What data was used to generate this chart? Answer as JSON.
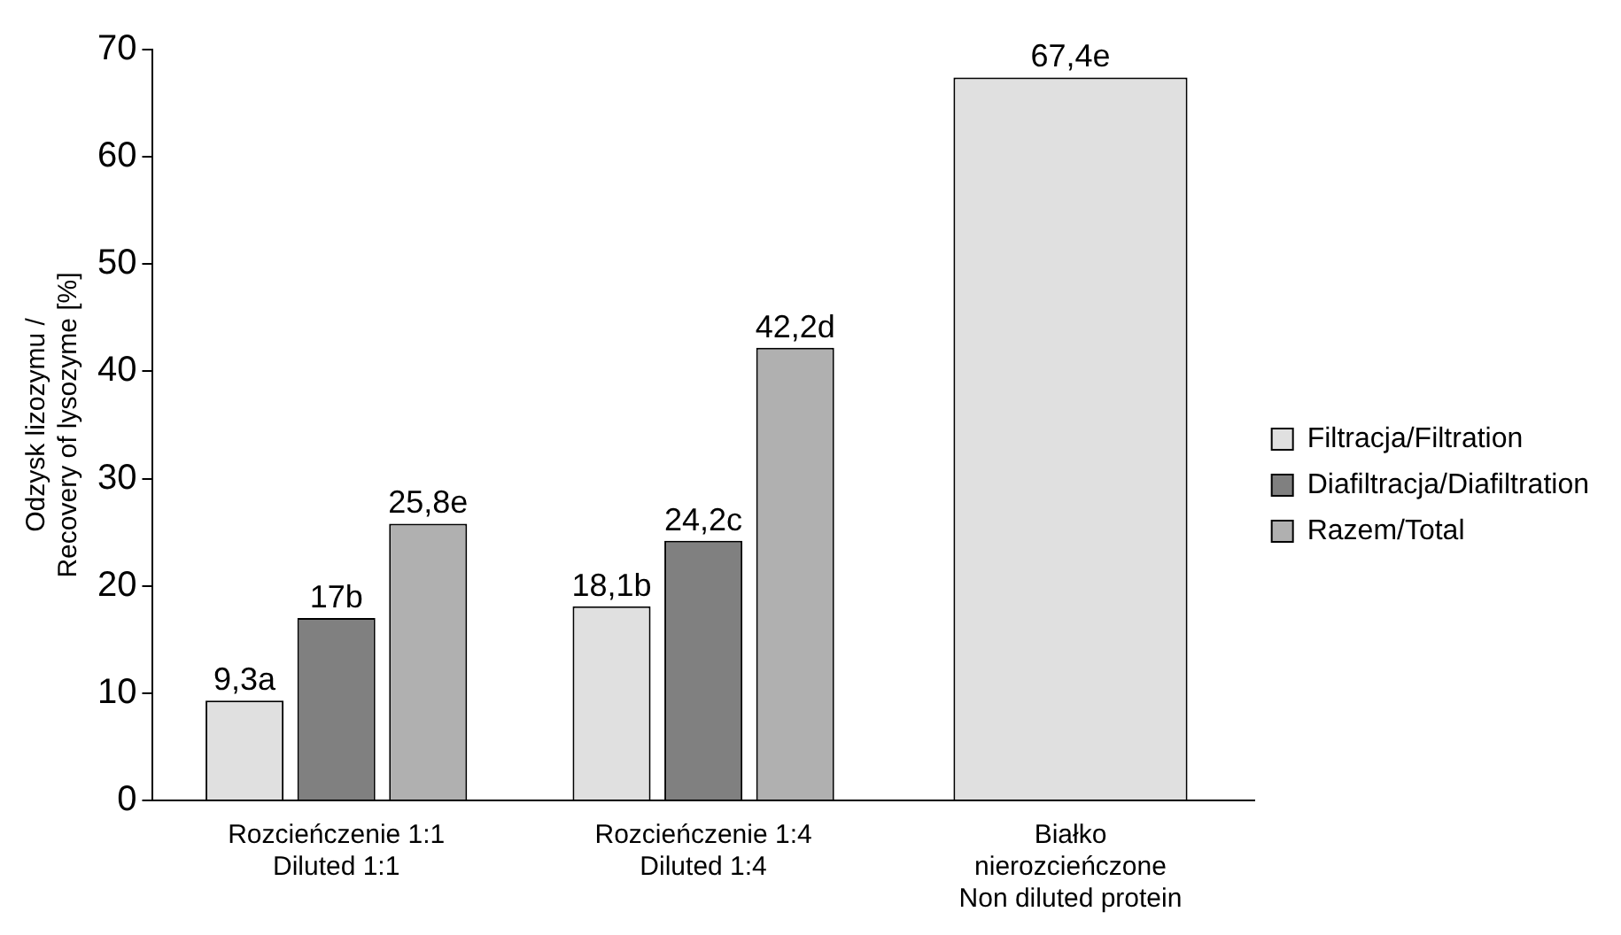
{
  "chart_data": {
    "type": "bar",
    "categories": [
      "Rozcieńczenie 1:1\nDiluted 1:1",
      "Rozcieńczenie 1:4\nDiluted 1:4",
      "Białko\nnierozcieńczone\nNon diluted protein"
    ],
    "series": [
      {
        "name": "Filtracja/Filtration",
        "color": "#e0e0e0",
        "values": [
          9.3,
          18.1,
          67.4
        ],
        "value_labels": [
          "9,3a",
          "18,1b",
          "67,4e"
        ]
      },
      {
        "name": "Diafiltracja/Diafiltration",
        "color": "#808080",
        "values": [
          17,
          24.2,
          null
        ],
        "value_labels": [
          "17b",
          "24,2c",
          null
        ]
      },
      {
        "name": "Razem/Total",
        "color": "#b0b0b0",
        "values": [
          25.8,
          42.2,
          null
        ],
        "value_labels": [
          "25,8e",
          "42,2d",
          null
        ]
      }
    ],
    "ylabel": "Odzysk lizozymu /\nRecovery of lysozyme [%]",
    "ylim": [
      0,
      70
    ],
    "yticks": [
      0,
      10,
      20,
      30,
      40,
      50,
      60,
      70
    ],
    "grid": false,
    "legend": "right"
  }
}
